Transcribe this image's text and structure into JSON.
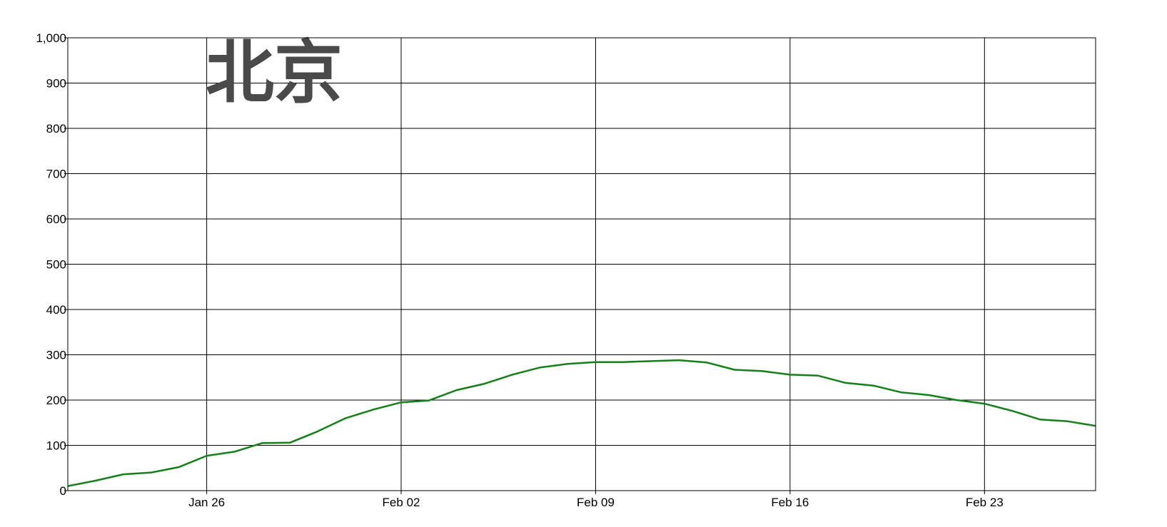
{
  "chart_data": {
    "type": "line",
    "title": "北京",
    "xlabel": "",
    "ylabel": "",
    "xlim": [
      "2020-01-21",
      "2020-02-27"
    ],
    "ylim": [
      0,
      1000
    ],
    "y_ticks": [
      0,
      100,
      200,
      300,
      400,
      500,
      600,
      700,
      800,
      900,
      1000
    ],
    "y_tick_labels": [
      "0",
      "100",
      "200",
      "300",
      "400",
      "500",
      "600",
      "700",
      "800",
      "900",
      "1,000"
    ],
    "x_ticks": [
      "2020-01-26",
      "2020-02-02",
      "2020-02-09",
      "2020-02-16",
      "2020-02-23"
    ],
    "x_tick_labels": [
      "Jan 26",
      "Feb 02",
      "Feb 09",
      "Feb 16",
      "Feb 23"
    ],
    "grid": true,
    "legend": "none",
    "series": [
      {
        "color": "#14801a",
        "x": [
          "2020-01-21",
          "2020-01-22",
          "2020-01-23",
          "2020-01-24",
          "2020-01-25",
          "2020-01-26",
          "2020-01-27",
          "2020-01-28",
          "2020-01-29",
          "2020-01-30",
          "2020-01-31",
          "2020-02-01",
          "2020-02-02",
          "2020-02-03",
          "2020-02-04",
          "2020-02-05",
          "2020-02-06",
          "2020-02-07",
          "2020-02-08",
          "2020-02-09",
          "2020-02-10",
          "2020-02-11",
          "2020-02-12",
          "2020-02-13",
          "2020-02-14",
          "2020-02-15",
          "2020-02-16",
          "2020-02-17",
          "2020-02-18",
          "2020-02-19",
          "2020-02-20",
          "2020-02-21",
          "2020-02-22",
          "2020-02-23",
          "2020-02-24",
          "2020-02-25",
          "2020-02-26",
          "2020-02-27"
        ],
        "values": [
          10,
          22,
          36,
          40,
          52,
          77,
          86,
          105,
          106,
          131,
          160,
          179,
          195,
          199,
          222,
          236,
          256,
          272,
          280,
          284,
          284,
          286,
          288,
          283,
          267,
          264,
          256,
          254,
          238,
          232,
          217,
          211,
          200,
          192,
          176,
          157,
          153,
          143
        ]
      }
    ]
  }
}
